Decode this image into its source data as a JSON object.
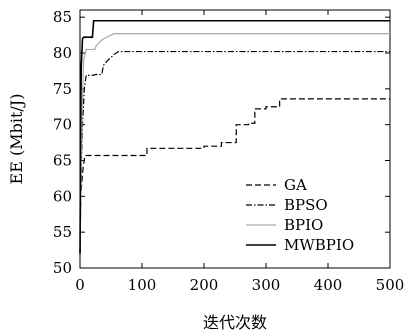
{
  "chart_data": {
    "type": "line",
    "title": "",
    "xlabel": "迭代次数",
    "ylabel": "EE (Mbit/J)",
    "xlim": [
      0,
      500
    ],
    "ylim": [
      50,
      86
    ],
    "x_ticks": [
      "0",
      "100",
      "200",
      "300",
      "400",
      "500"
    ],
    "y_ticks": [
      "50",
      "55",
      "60",
      "65",
      "70",
      "75",
      "80",
      "85"
    ],
    "grid": false,
    "legend_position": "bottom-right",
    "series": [
      {
        "name": "GA",
        "color": "#000000",
        "dash": "dashed",
        "points": [
          [
            0,
            52
          ],
          [
            1,
            60
          ],
          [
            3,
            62
          ],
          [
            5,
            64
          ],
          [
            8,
            65.7
          ],
          [
            108,
            65.7
          ],
          [
            108,
            66.7
          ],
          [
            200,
            66.7
          ],
          [
            200,
            67
          ],
          [
            228,
            67
          ],
          [
            228,
            67.5
          ],
          [
            252,
            67.5
          ],
          [
            252,
            70
          ],
          [
            272,
            70
          ],
          [
            272,
            70.2
          ],
          [
            282,
            70.2
          ],
          [
            282,
            72.2
          ],
          [
            300,
            72.2
          ],
          [
            300,
            72.5
          ],
          [
            322,
            72.5
          ],
          [
            322,
            73.6
          ],
          [
            500,
            73.6
          ]
        ]
      },
      {
        "name": "BPSO",
        "color": "#000000",
        "dash": "dashdot",
        "points": [
          [
            0,
            52
          ],
          [
            2,
            64
          ],
          [
            4,
            70
          ],
          [
            7,
            75
          ],
          [
            10,
            76.9
          ],
          [
            22,
            76.9
          ],
          [
            25,
            77
          ],
          [
            35,
            77
          ],
          [
            38,
            78.3
          ],
          [
            45,
            79
          ],
          [
            50,
            79.4
          ],
          [
            55,
            79.8
          ],
          [
            62,
            80.2
          ],
          [
            500,
            80.2
          ]
        ]
      },
      {
        "name": "BPIO",
        "color": "#aaaaaa",
        "dash": "solid",
        "points": [
          [
            0,
            52
          ],
          [
            2,
            65
          ],
          [
            4,
            74
          ],
          [
            6,
            79
          ],
          [
            10,
            80.5
          ],
          [
            24,
            80.5
          ],
          [
            26,
            81
          ],
          [
            35,
            81.8
          ],
          [
            45,
            82.3
          ],
          [
            55,
            82.7
          ],
          [
            500,
            82.7
          ]
        ]
      },
      {
        "name": "MWBPIO",
        "color": "#000000",
        "dash": "solid",
        "points": [
          [
            0,
            52
          ],
          [
            1,
            70
          ],
          [
            2,
            78
          ],
          [
            4,
            82
          ],
          [
            6,
            82.2
          ],
          [
            20,
            82.2
          ],
          [
            22,
            84.5
          ],
          [
            500,
            84.5
          ]
        ]
      }
    ]
  }
}
